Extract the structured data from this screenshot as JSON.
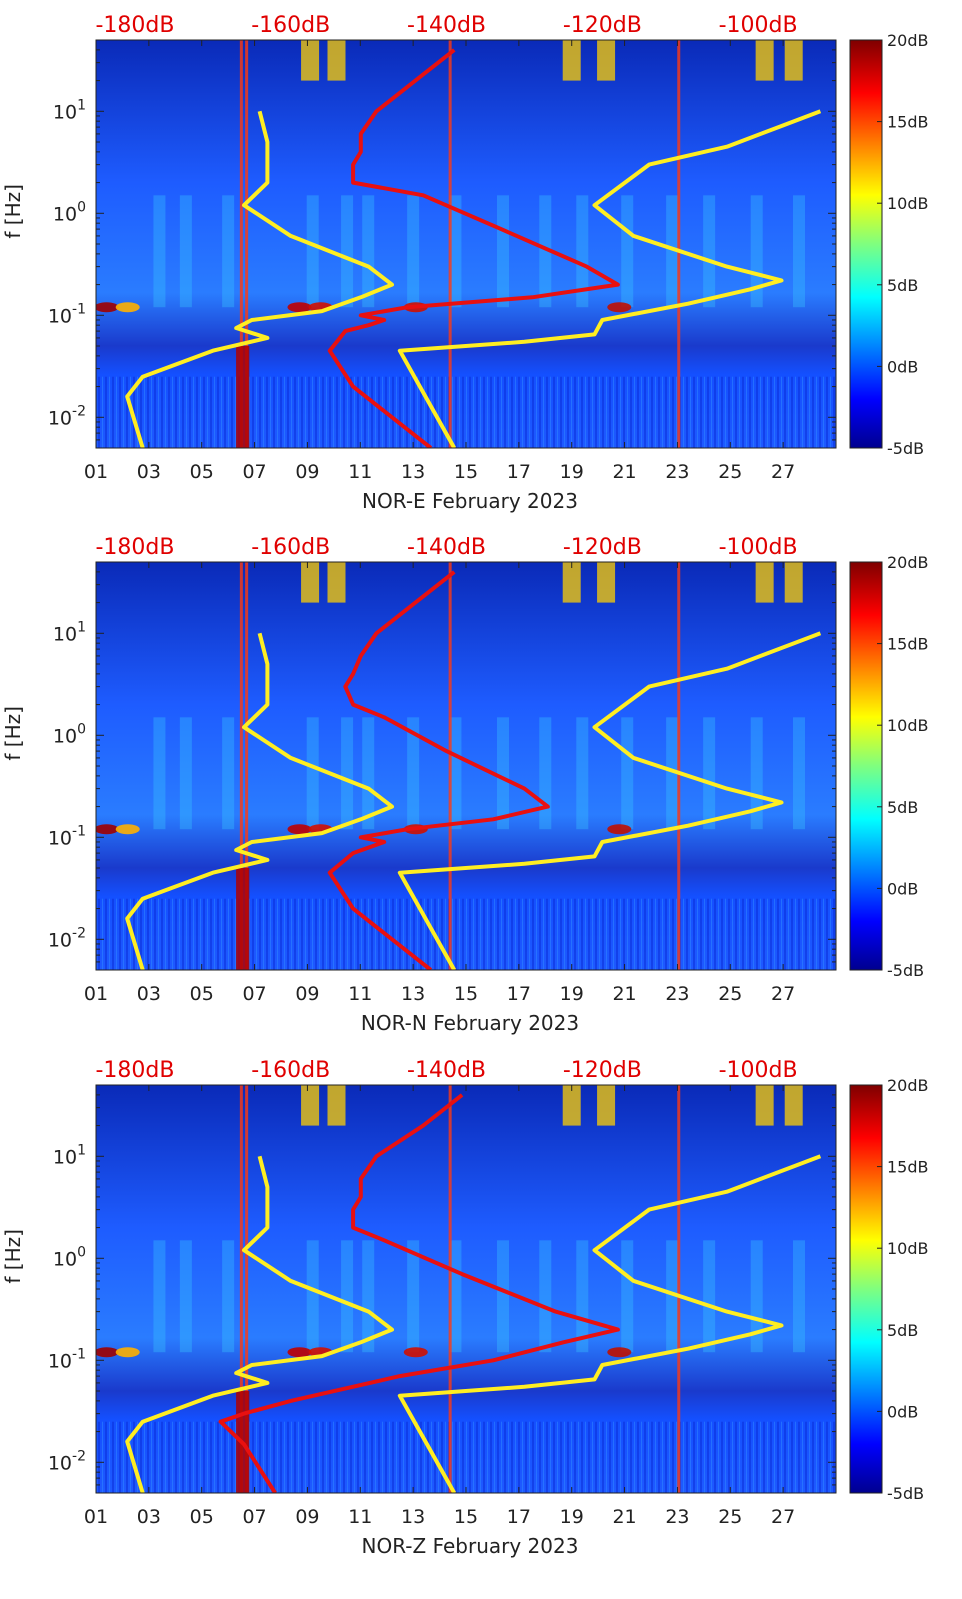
{
  "chart_data": [
    {
      "type": "heatmap",
      "title": "",
      "xlabel": "NOR-E February 2023",
      "ylabel": "f [Hz]",
      "x_ticks": [
        "01",
        "03",
        "05",
        "07",
        "09",
        "11",
        "13",
        "15",
        "17",
        "19",
        "21",
        "23",
        "25",
        "27"
      ],
      "x_range_days": [
        1,
        29
      ],
      "y_scale": "log",
      "ylim_hz": [
        0.005,
        50
      ],
      "y_ticks": [
        {
          "base": "10",
          "exp": "-2",
          "value": 0.01
        },
        {
          "base": "10",
          "exp": "-1",
          "value": 0.1
        },
        {
          "base": "10",
          "exp": "0",
          "value": 1
        },
        {
          "base": "10",
          "exp": "1",
          "value": 10
        }
      ],
      "top_axis_labels": [
        "-180dB",
        "-160dB",
        "-140dB",
        "-120dB",
        "-100dB"
      ],
      "top_axis_range_db": [
        -185,
        -90
      ],
      "colorbar": {
        "labels": [
          "20dB",
          "15dB",
          "10dB",
          "5dB",
          "0dB",
          "-5dB"
        ],
        "range_db": [
          -5,
          20
        ]
      },
      "overlay_series": [
        {
          "name": "model low",
          "color": "#ffee22",
          "points": [
            [
              0.005,
              -179
            ],
            [
              0.016,
              -181
            ],
            [
              0.025,
              -179
            ],
            [
              0.045,
              -170
            ],
            [
              0.06,
              -163
            ],
            [
              0.075,
              -167
            ],
            [
              0.09,
              -165
            ],
            [
              0.11,
              -156
            ],
            [
              0.15,
              -151
            ],
            [
              0.2,
              -147
            ],
            [
              0.3,
              -150
            ],
            [
              0.6,
              -160
            ],
            [
              1.2,
              -166
            ],
            [
              2.0,
              -163
            ],
            [
              5.0,
              -163
            ],
            [
              10,
              -164
            ]
          ]
        },
        {
          "name": "model high",
          "color": "#ffee22",
          "points": [
            [
              0.005,
              -139
            ],
            [
              0.045,
              -146
            ],
            [
              0.055,
              -130
            ],
            [
              0.065,
              -121
            ],
            [
              0.09,
              -120
            ],
            [
              0.13,
              -109
            ],
            [
              0.18,
              -101
            ],
            [
              0.22,
              -97
            ],
            [
              0.3,
              -104
            ],
            [
              0.6,
              -116
            ],
            [
              1.2,
              -121
            ],
            [
              3.0,
              -114
            ],
            [
              4.5,
              -104
            ],
            [
              10,
              -92
            ]
          ]
        },
        {
          "name": "median",
          "color": "#e81010",
          "points": [
            [
              0.005,
              -142
            ],
            [
              0.02,
              -152
            ],
            [
              0.045,
              -155
            ],
            [
              0.07,
              -153
            ],
            [
              0.08,
              -150
            ],
            [
              0.09,
              -148
            ],
            [
              0.1,
              -151
            ],
            [
              0.12,
              -145
            ],
            [
              0.15,
              -129
            ],
            [
              0.2,
              -118
            ],
            [
              0.3,
              -122
            ],
            [
              0.7,
              -133
            ],
            [
              1.5,
              -143
            ],
            [
              2.0,
              -152
            ],
            [
              3.0,
              -152
            ],
            [
              4.0,
              -151
            ],
            [
              6.0,
              -151
            ],
            [
              10,
              -149
            ],
            [
              20,
              -144
            ],
            [
              40,
              -139
            ]
          ]
        }
      ]
    },
    {
      "type": "heatmap",
      "title": "",
      "xlabel": "NOR-N February 2023",
      "ylabel": "f [Hz]",
      "x_ticks": [
        "01",
        "03",
        "05",
        "07",
        "09",
        "11",
        "13",
        "15",
        "17",
        "19",
        "21",
        "23",
        "25",
        "27"
      ],
      "x_range_days": [
        1,
        29
      ],
      "y_scale": "log",
      "ylim_hz": [
        0.005,
        50
      ],
      "y_ticks": [
        {
          "base": "10",
          "exp": "-2",
          "value": 0.01
        },
        {
          "base": "10",
          "exp": "-1",
          "value": 0.1
        },
        {
          "base": "10",
          "exp": "0",
          "value": 1
        },
        {
          "base": "10",
          "exp": "1",
          "value": 10
        }
      ],
      "top_axis_labels": [
        "-180dB",
        "-160dB",
        "-140dB",
        "-120dB",
        "-100dB"
      ],
      "top_axis_range_db": [
        -185,
        -90
      ],
      "colorbar": {
        "labels": [
          "20dB",
          "15dB",
          "10dB",
          "5dB",
          "0dB",
          "-5dB"
        ],
        "range_db": [
          -5,
          20
        ]
      },
      "overlay_series": [
        {
          "name": "model low",
          "color": "#ffee22",
          "points": [
            [
              0.005,
              -179
            ],
            [
              0.016,
              -181
            ],
            [
              0.025,
              -179
            ],
            [
              0.045,
              -170
            ],
            [
              0.06,
              -163
            ],
            [
              0.075,
              -167
            ],
            [
              0.09,
              -165
            ],
            [
              0.11,
              -156
            ],
            [
              0.15,
              -151
            ],
            [
              0.2,
              -147
            ],
            [
              0.3,
              -150
            ],
            [
              0.6,
              -160
            ],
            [
              1.2,
              -166
            ],
            [
              2.0,
              -163
            ],
            [
              5.0,
              -163
            ],
            [
              10,
              -164
            ]
          ]
        },
        {
          "name": "model high",
          "color": "#ffee22",
          "points": [
            [
              0.005,
              -139
            ],
            [
              0.045,
              -146
            ],
            [
              0.055,
              -130
            ],
            [
              0.065,
              -121
            ],
            [
              0.09,
              -120
            ],
            [
              0.13,
              -109
            ],
            [
              0.18,
              -101
            ],
            [
              0.22,
              -97
            ],
            [
              0.3,
              -104
            ],
            [
              0.6,
              -116
            ],
            [
              1.2,
              -121
            ],
            [
              3.0,
              -114
            ],
            [
              4.5,
              -104
            ],
            [
              10,
              -92
            ]
          ]
        },
        {
          "name": "median",
          "color": "#e81010",
          "points": [
            [
              0.005,
              -142
            ],
            [
              0.02,
              -152
            ],
            [
              0.045,
              -155
            ],
            [
              0.07,
              -152
            ],
            [
              0.09,
              -148
            ],
            [
              0.1,
              -151
            ],
            [
              0.12,
              -145
            ],
            [
              0.15,
              -134
            ],
            [
              0.2,
              -127
            ],
            [
              0.3,
              -130
            ],
            [
              0.7,
              -140
            ],
            [
              1.5,
              -148
            ],
            [
              2.0,
              -152
            ],
            [
              3.0,
              -153
            ],
            [
              4.0,
              -152
            ],
            [
              6.0,
              -151
            ],
            [
              10,
              -149
            ],
            [
              20,
              -144
            ],
            [
              40,
              -139
            ]
          ]
        }
      ]
    },
    {
      "type": "heatmap",
      "title": "",
      "xlabel": "NOR-Z February 2023",
      "ylabel": "f [Hz]",
      "x_ticks": [
        "01",
        "03",
        "05",
        "07",
        "09",
        "11",
        "13",
        "15",
        "17",
        "19",
        "21",
        "23",
        "25",
        "27"
      ],
      "x_range_days": [
        1,
        29
      ],
      "y_scale": "log",
      "ylim_hz": [
        0.005,
        50
      ],
      "y_ticks": [
        {
          "base": "10",
          "exp": "-2",
          "value": 0.01
        },
        {
          "base": "10",
          "exp": "-1",
          "value": 0.1
        },
        {
          "base": "10",
          "exp": "0",
          "value": 1
        },
        {
          "base": "10",
          "exp": "1",
          "value": 10
        }
      ],
      "top_axis_labels": [
        "-180dB",
        "-160dB",
        "-140dB",
        "-120dB",
        "-100dB"
      ],
      "top_axis_range_db": [
        -185,
        -90
      ],
      "colorbar": {
        "labels": [
          "20dB",
          "15dB",
          "10dB",
          "5dB",
          "0dB",
          "-5dB"
        ],
        "range_db": [
          -5,
          20
        ]
      },
      "overlay_series": [
        {
          "name": "model low",
          "color": "#ffee22",
          "points": [
            [
              0.005,
              -179
            ],
            [
              0.016,
              -181
            ],
            [
              0.025,
              -179
            ],
            [
              0.045,
              -170
            ],
            [
              0.06,
              -163
            ],
            [
              0.075,
              -167
            ],
            [
              0.09,
              -165
            ],
            [
              0.11,
              -156
            ],
            [
              0.15,
              -151
            ],
            [
              0.2,
              -147
            ],
            [
              0.3,
              -150
            ],
            [
              0.6,
              -160
            ],
            [
              1.2,
              -166
            ],
            [
              2.0,
              -163
            ],
            [
              5.0,
              -163
            ],
            [
              10,
              -164
            ]
          ]
        },
        {
          "name": "model high",
          "color": "#ffee22",
          "points": [
            [
              0.005,
              -139
            ],
            [
              0.045,
              -146
            ],
            [
              0.055,
              -130
            ],
            [
              0.065,
              -121
            ],
            [
              0.09,
              -120
            ],
            [
              0.13,
              -109
            ],
            [
              0.18,
              -101
            ],
            [
              0.22,
              -97
            ],
            [
              0.3,
              -104
            ],
            [
              0.6,
              -116
            ],
            [
              1.2,
              -121
            ],
            [
              3.0,
              -114
            ],
            [
              4.5,
              -104
            ],
            [
              10,
              -92
            ]
          ]
        },
        {
          "name": "median",
          "color": "#e81010",
          "points": [
            [
              0.005,
              -162
            ],
            [
              0.015,
              -166
            ],
            [
              0.025,
              -169
            ],
            [
              0.03,
              -166
            ],
            [
              0.04,
              -160
            ],
            [
              0.07,
              -146
            ],
            [
              0.1,
              -134
            ],
            [
              0.15,
              -125
            ],
            [
              0.2,
              -118
            ],
            [
              0.3,
              -126
            ],
            [
              0.7,
              -138
            ],
            [
              1.5,
              -148
            ],
            [
              2.0,
              -152
            ],
            [
              3.0,
              -152
            ],
            [
              4.0,
              -151
            ],
            [
              6.0,
              -151
            ],
            [
              10,
              -149
            ],
            [
              20,
              -143
            ],
            [
              40,
              -138
            ]
          ]
        }
      ]
    }
  ]
}
